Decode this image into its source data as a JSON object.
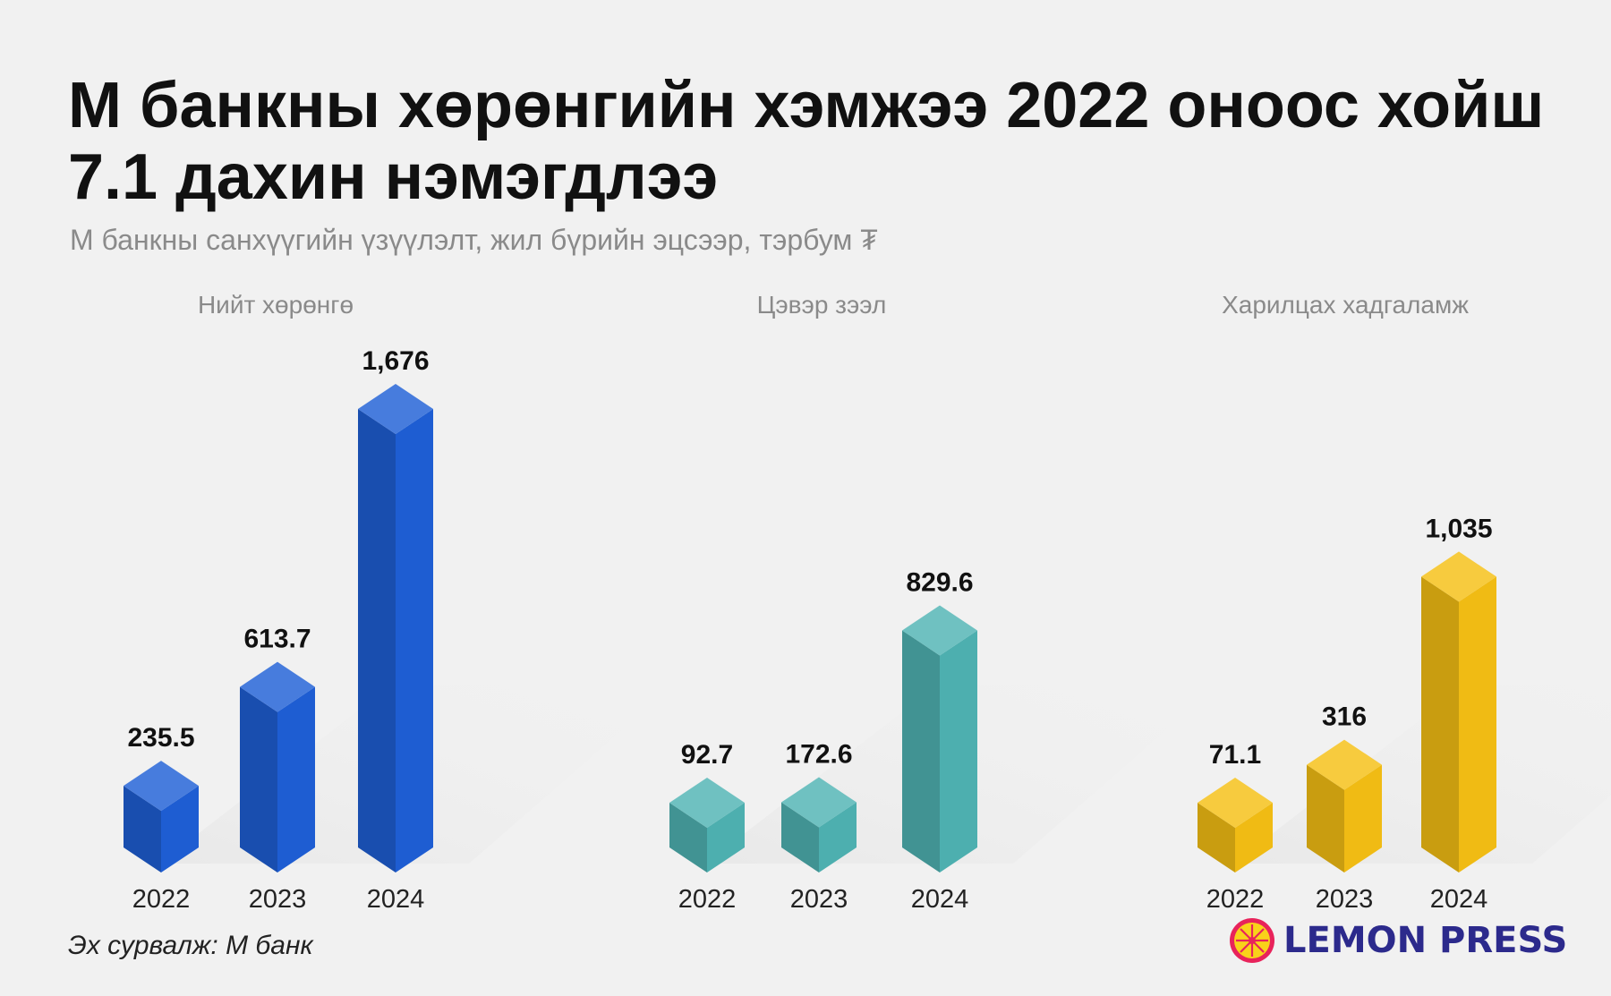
{
  "title": "М банкны хөрөнгийн хэмжээ 2022 оноос хойш 7.1 дахин нэмэгдлээ",
  "subtitle": "М банкны санхүүгийн үзүүлэлт, жил бүрийн эцсээр, тэрбум ₮",
  "source": "Эх сурвалж: М банк",
  "brand": {
    "name": "LEMON PRESS",
    "logo_icon": "lemon-slice-icon"
  },
  "colors": {
    "background": "#f1f1f1",
    "total_assets": "#1f5fd6",
    "net_loans": "#4fb3b3",
    "deposits": "#f5bf14",
    "title": "#111111",
    "subtitle": "#8a8a8a"
  },
  "chart_data": [
    {
      "type": "bar",
      "title": "Нийт хөрөнгө",
      "categories": [
        "2022",
        "2023",
        "2024"
      ],
      "values": [
        235.5,
        613.7,
        1676
      ],
      "value_labels": [
        "235.5",
        "613.7",
        "1,676"
      ],
      "color": "#1f5fd6"
    },
    {
      "type": "bar",
      "title": "Цэвэр зээл",
      "categories": [
        "2022",
        "2023",
        "2024"
      ],
      "values": [
        92.7,
        172.6,
        829.6
      ],
      "value_labels": [
        "92.7",
        "172.6",
        "829.6"
      ],
      "color": "#4fb3b3"
    },
    {
      "type": "bar",
      "title": "Харилцах хадгаламж",
      "categories": [
        "2022",
        "2023",
        "2024"
      ],
      "values": [
        71.1,
        316,
        1035
      ],
      "value_labels": [
        "71.1",
        "316",
        "1,035"
      ],
      "color": "#f5bf14"
    }
  ]
}
